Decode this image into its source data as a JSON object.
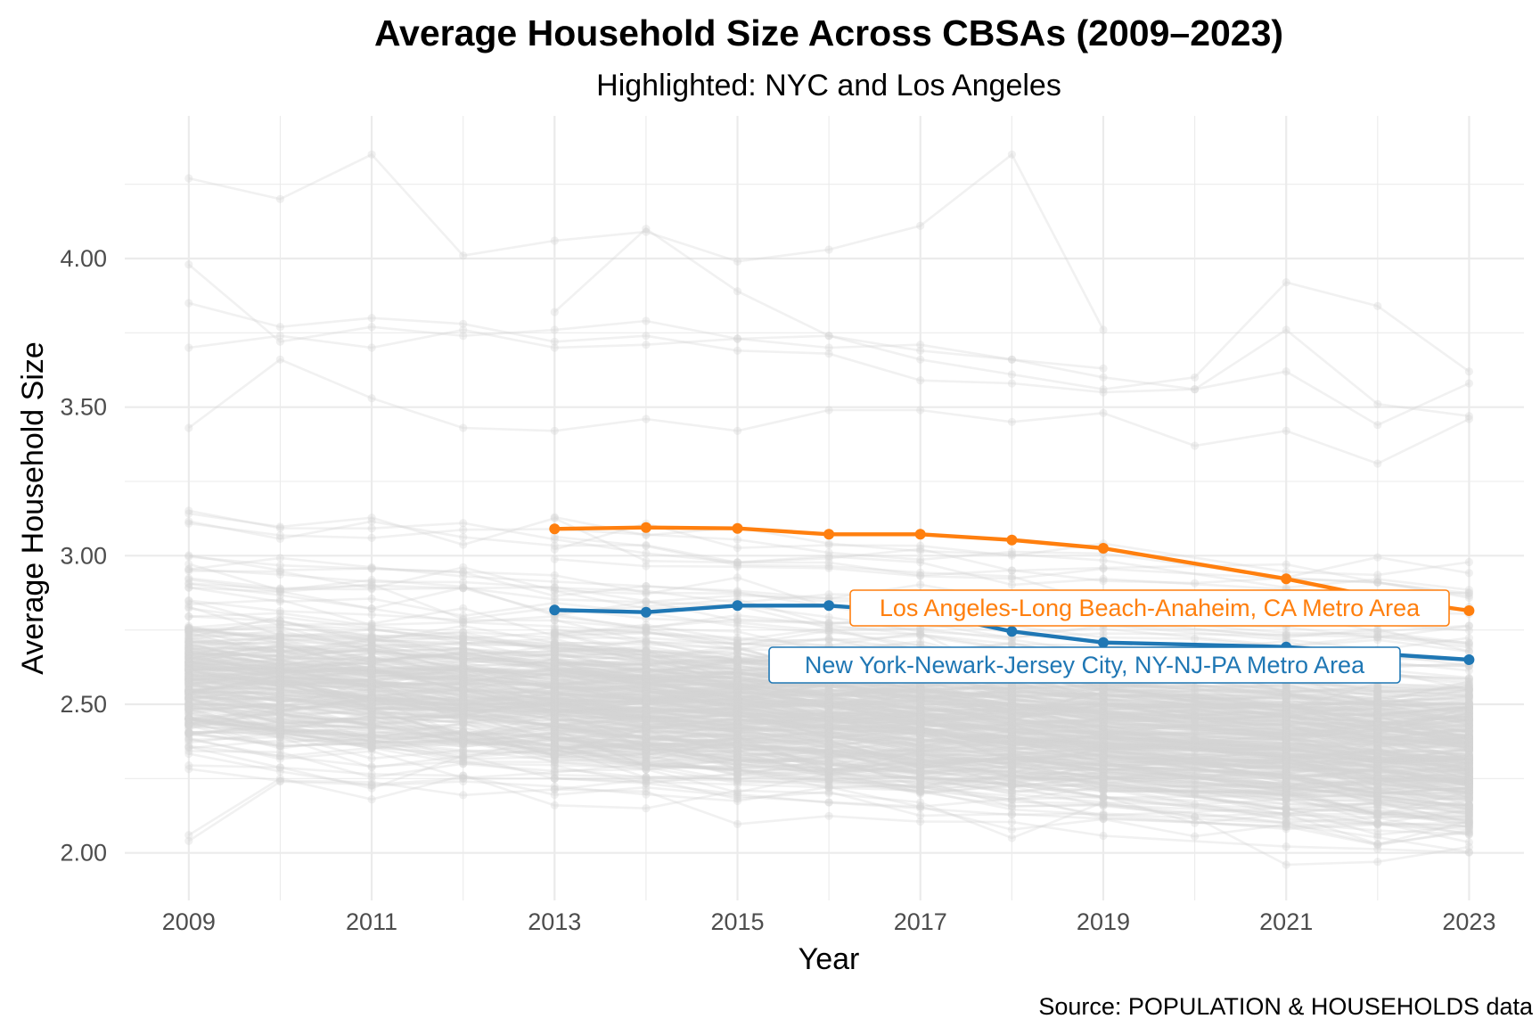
{
  "chart_data": {
    "type": "line",
    "title": "Average Household Size Across CBSAs (2009–2023)",
    "subtitle": "Highlighted: NYC and Los Angeles",
    "xlabel": "Year",
    "ylabel": "Average Household Size",
    "caption": "Source: POPULATION & HOUSEHOLDS data",
    "xlim": [
      2008.3,
      2023.6
    ],
    "ylim": [
      1.84,
      4.48
    ],
    "x_ticks": [
      2009,
      2011,
      2013,
      2015,
      2017,
      2019,
      2021,
      2023
    ],
    "x_tick_labels": [
      "2009",
      "2011",
      "2013",
      "2015",
      "2017",
      "2019",
      "2021",
      "2023"
    ],
    "y_ticks": [
      2.0,
      2.5,
      3.0,
      3.5,
      4.0
    ],
    "y_tick_labels": [
      "2.00",
      "2.50",
      "3.00",
      "3.50",
      "4.00"
    ],
    "grid": true,
    "legend": "none",
    "background_series_color": "#d3d3d3",
    "background_series_count": 380,
    "background_outliers": [
      {
        "x": [
          2009,
          2010,
          2011,
          2012,
          2013,
          2014,
          2015,
          2016,
          2017,
          2018,
          2019
        ],
        "y": [
          4.27,
          4.2,
          4.35,
          4.01,
          4.06,
          4.09,
          3.99,
          4.03,
          4.11,
          4.35,
          3.76
        ]
      },
      {
        "x": [
          2013,
          2014,
          2015,
          2016,
          2017,
          2018,
          2019,
          2020,
          2021,
          2022,
          2023
        ],
        "y": [
          3.82,
          4.1,
          3.89,
          3.74,
          3.66,
          3.61,
          3.56,
          3.6,
          3.92,
          3.84,
          3.62
        ]
      },
      {
        "x": [
          2009,
          2010,
          2011,
          2012,
          2013,
          2014,
          2015,
          2016,
          2017,
          2018,
          2019
        ],
        "y": [
          3.98,
          3.72,
          3.77,
          3.74,
          3.76,
          3.79,
          3.73,
          3.7,
          3.71,
          3.66,
          3.63
        ]
      },
      {
        "x": [
          2009,
          2010,
          2011,
          2012,
          2013,
          2014,
          2015,
          2016,
          2017,
          2018,
          2019,
          2020,
          2021,
          2022,
          2023
        ],
        "y": [
          3.85,
          3.77,
          3.8,
          3.78,
          3.72,
          3.74,
          3.69,
          3.68,
          3.59,
          3.58,
          3.55,
          3.56,
          3.76,
          3.51,
          3.47
        ]
      },
      {
        "x": [
          2009,
          2010,
          2011,
          2012,
          2013,
          2014,
          2015,
          2016,
          2017,
          2018,
          2019,
          2020,
          2021,
          2022,
          2023
        ],
        "y": [
          2.06,
          2.25,
          2.18,
          2.26,
          2.16,
          2.15,
          2.21,
          2.2,
          2.17,
          2.05,
          2.17,
          2.12,
          1.96,
          1.97,
          2.02
        ]
      },
      {
        "x": [
          2009,
          2010,
          2011,
          2012,
          2013,
          2014,
          2015,
          2016,
          2017,
          2018,
          2019,
          2020,
          2021,
          2022,
          2023
        ],
        "y": [
          2.04,
          2.24,
          2.23,
          2.25,
          2.25,
          2.24,
          2.23,
          2.22,
          2.21,
          2.18,
          2.19,
          2.1,
          2.13,
          2.03,
          2.07
        ]
      },
      {
        "x": [
          2009,
          2010,
          2011,
          2012,
          2013,
          2014,
          2015,
          2016,
          2017,
          2018,
          2019,
          2020,
          2021,
          2022,
          2023
        ],
        "y": [
          3.7,
          3.74,
          3.7,
          3.76,
          3.7,
          3.71,
          3.73,
          3.74,
          3.69,
          3.66,
          3.6,
          3.56,
          3.62,
          3.44,
          3.58
        ]
      },
      {
        "x": [
          2009,
          2010,
          2011,
          2012,
          2013,
          2014,
          2015,
          2016,
          2017,
          2018,
          2019,
          2020,
          2021,
          2022,
          2023
        ],
        "y": [
          3.43,
          3.66,
          3.53,
          3.43,
          3.42,
          3.46,
          3.42,
          3.49,
          3.49,
          3.45,
          3.48,
          3.37,
          3.42,
          3.31,
          3.46
        ]
      }
    ],
    "series": [
      {
        "name": "Los Angeles-Long Beach-Anaheim, CA Metro Area",
        "color": "#ff7f0e",
        "x": [
          2013,
          2014,
          2015,
          2016,
          2017,
          2018,
          2019,
          2021,
          2022,
          2023
        ],
        "y": [
          3.09,
          3.095,
          3.092,
          3.072,
          3.072,
          3.053,
          3.025,
          2.922,
          2.86,
          2.815
        ]
      },
      {
        "name": "New York-Newark-Jersey City, NY-NJ-PA Metro Area",
        "color": "#1f77b4",
        "x": [
          2013,
          2014,
          2015,
          2016,
          2017,
          2018,
          2019,
          2021,
          2022,
          2023
        ],
        "y": [
          2.817,
          2.81,
          2.832,
          2.832,
          2.81,
          2.745,
          2.708,
          2.693,
          2.67,
          2.65
        ]
      }
    ],
    "annotations": [
      {
        "series": 0,
        "text": "Los Angeles-Long Beach-Anaheim, CA Metro Area"
      },
      {
        "series": 1,
        "text": "New York-Newark-Jersey City, NY-NJ-PA Metro Area"
      }
    ]
  }
}
